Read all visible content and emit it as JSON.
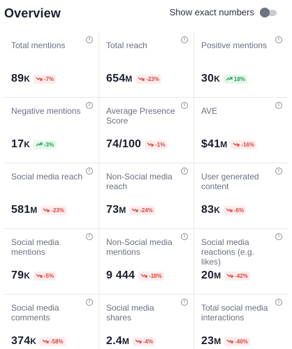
{
  "header": {
    "title": "Overview",
    "toggle_label": "Show exact numbers"
  },
  "colors": {
    "down": "#d7443e",
    "up": "#23a058"
  },
  "metrics": [
    {
      "label": "Total mentions",
      "value": "89",
      "unit": "K",
      "change": "-7%",
      "direction": "down"
    },
    {
      "label": "Total reach",
      "value": "654",
      "unit": "M",
      "change": "-23%",
      "direction": "down"
    },
    {
      "label": "Positive mentions",
      "value": "30",
      "unit": "K",
      "change": "18%",
      "direction": "up"
    },
    {
      "label": "Negative mentions",
      "value": "17",
      "unit": "K",
      "change": "-3%",
      "direction": "up"
    },
    {
      "label": "Average Presence Score",
      "value": "74/100",
      "unit": "",
      "change": "-1%",
      "direction": "down"
    },
    {
      "label": "AVE",
      "value": "$41",
      "unit": "M",
      "change": "-16%",
      "direction": "down"
    },
    {
      "label": "Social media reach",
      "value": "581",
      "unit": "M",
      "change": "-23%",
      "direction": "down"
    },
    {
      "label": "Non-Social media reach",
      "value": "73",
      "unit": "M",
      "change": "-24%",
      "direction": "down"
    },
    {
      "label": "User generated content",
      "value": "83",
      "unit": "K",
      "change": "-6%",
      "direction": "down"
    },
    {
      "label": "Social media mentions",
      "value": "79",
      "unit": "K",
      "change": "-5%",
      "direction": "down"
    },
    {
      "label": "Non-Social media mentions",
      "value": "9 444",
      "unit": "",
      "change": "-18%",
      "direction": "down"
    },
    {
      "label": "Social media reactions (e.g. likes)",
      "value": "20",
      "unit": "M",
      "change": "-42%",
      "direction": "down"
    },
    {
      "label": "Social media comments",
      "value": "374",
      "unit": "K",
      "change": "-58%",
      "direction": "down"
    },
    {
      "label": "Social media shares",
      "value": "2.4",
      "unit": "M",
      "change": "-4%",
      "direction": "down"
    },
    {
      "label": "Total social media interactions",
      "value": "23",
      "unit": "M",
      "change": "-40%",
      "direction": "down"
    }
  ]
}
